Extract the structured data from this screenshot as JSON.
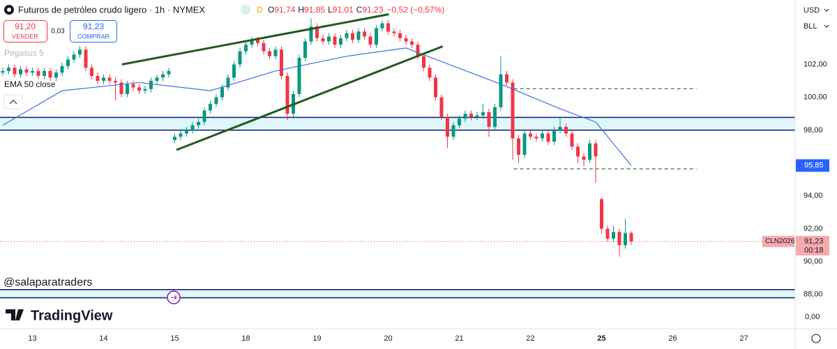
{
  "chart_data": {
    "type": "candlestick",
    "title": "Futuros de petróleo crudo ligero · 1h · NYMEX",
    "interval_badge": "D",
    "ohlc": {
      "open_prefix": "O",
      "open": "91,74",
      "high_prefix": "H",
      "high": "91,85",
      "low_prefix": "L",
      "low": "91,01",
      "close_prefix": "C",
      "close": "91,23",
      "change": "−0,52 (−0,57%)"
    },
    "colors": {
      "up": "#089981",
      "down": "#f23645",
      "ema": "#3c6fe0",
      "trend": "#1e5a1e",
      "zone": "#dff6fb",
      "zone_line": "#0d1b6e"
    },
    "open": [
      101.5,
      101.6,
      101.8,
      101.4,
      101.7,
      101.5,
      101.6,
      101.3,
      101.6,
      101.2,
      101.5,
      101.9,
      102.3,
      102.6,
      102.9,
      101.8,
      101.3,
      101.0,
      101.2,
      101.0,
      100.9,
      100.2,
      100.8,
      100.6,
      100.4,
      100.5,
      101.0,
      101.2,
      101.4,
      97.4,
      97.6,
      97.8,
      98.0,
      98.3,
      98.5,
      99.2,
      99.6,
      100.0,
      100.6,
      101.2,
      102.0,
      102.8,
      103.2,
      103.5,
      103.3,
      102.8,
      102.5,
      102.9,
      101.3,
      99.0,
      100.2,
      102.4,
      103.4,
      104.3,
      103.6,
      103.4,
      103.7,
      103.2,
      103.6,
      103.9,
      103.5,
      104.0,
      103.7,
      103.2,
      104.2,
      104.5,
      104.0,
      103.9,
      103.6,
      103.4,
      103.2,
      102.5,
      101.8,
      101.2,
      100.0,
      98.8,
      97.6,
      98.3,
      98.7,
      99.0,
      98.8,
      98.9,
      99.1,
      98.2,
      99.4,
      101.4,
      100.9,
      97.5,
      96.5,
      97.8,
      97.6,
      97.5,
      97.8,
      97.3,
      98.0,
      98.2,
      97.8,
      97.0,
      96.4,
      96.2,
      97.2,
      93.8,
      92.0,
      91.4,
      91.8,
      91.0,
      91.74
    ],
    "high": [
      101.8,
      102.0,
      102.0,
      101.9,
      101.9,
      101.8,
      101.8,
      101.8,
      101.8,
      101.7,
      102.1,
      102.5,
      102.8,
      103.1,
      103.1,
      102.0,
      101.5,
      101.4,
      101.4,
      101.2,
      101.1,
      101.0,
      101.0,
      100.8,
      100.7,
      101.2,
      101.4,
      101.6,
      101.8,
      97.8,
      98.0,
      98.2,
      98.5,
      98.7,
      99.4,
      99.8,
      100.2,
      100.8,
      101.4,
      102.2,
      103.0,
      103.4,
      103.7,
      103.7,
      103.5,
      103.0,
      103.1,
      103.1,
      101.5,
      100.4,
      102.6,
      103.6,
      104.8,
      104.5,
      103.8,
      103.9,
      103.9,
      103.8,
      104.1,
      104.1,
      104.2,
      104.2,
      103.9,
      104.4,
      104.7,
      104.7,
      104.2,
      104.1,
      103.8,
      103.6,
      103.4,
      102.7,
      102.0,
      101.4,
      100.2,
      99.0,
      98.5,
      98.9,
      99.2,
      99.2,
      99.1,
      99.6,
      99.3,
      99.6,
      102.5,
      101.6,
      101.1,
      97.7,
      98.0,
      98.0,
      97.8,
      98.0,
      98.0,
      98.2,
      98.8,
      98.4,
      98.0,
      97.2,
      96.6,
      97.4,
      97.4,
      93.9,
      92.2,
      92.2,
      92.0,
      92.6,
      91.85
    ],
    "low": [
      101.3,
      101.4,
      101.2,
      101.2,
      101.3,
      101.3,
      101.1,
      101.1,
      101.0,
      101.0,
      101.3,
      101.7,
      102.1,
      102.4,
      101.6,
      101.1,
      100.8,
      100.8,
      100.8,
      99.8,
      100.0,
      100.0,
      100.4,
      100.2,
      100.2,
      100.3,
      100.8,
      101.0,
      101.2,
      97.2,
      97.4,
      97.6,
      97.8,
      98.1,
      98.3,
      99.0,
      99.4,
      99.8,
      100.4,
      101.0,
      101.8,
      102.6,
      103.0,
      103.1,
      102.6,
      102.3,
      102.3,
      101.1,
      98.6,
      98.8,
      100.0,
      102.2,
      103.2,
      103.4,
      103.2,
      103.2,
      103.0,
      103.0,
      103.4,
      103.3,
      103.3,
      103.5,
      103.0,
      103.0,
      104.0,
      103.8,
      103.7,
      103.4,
      103.2,
      103.0,
      102.3,
      101.6,
      101.0,
      99.8,
      98.6,
      96.9,
      97.4,
      98.1,
      98.5,
      98.6,
      98.6,
      98.7,
      97.6,
      98.0,
      99.2,
      100.7,
      96.2,
      96.0,
      96.3,
      97.4,
      97.3,
      97.3,
      97.1,
      97.1,
      97.8,
      97.6,
      96.8,
      96.0,
      95.8,
      96.0,
      94.8,
      91.7,
      91.2,
      91.2,
      90.3,
      90.8,
      91.01
    ],
    "close": [
      101.6,
      101.8,
      101.4,
      101.7,
      101.5,
      101.6,
      101.3,
      101.6,
      101.2,
      101.5,
      101.9,
      102.3,
      102.6,
      102.9,
      101.8,
      101.3,
      101.0,
      101.2,
      101.0,
      100.9,
      100.2,
      100.8,
      100.6,
      100.4,
      100.5,
      101.0,
      101.2,
      101.4,
      101.6,
      97.6,
      97.8,
      98.0,
      98.3,
      98.5,
      99.2,
      99.6,
      100.0,
      100.6,
      101.2,
      102.0,
      102.8,
      103.2,
      103.5,
      103.3,
      102.8,
      102.5,
      102.9,
      101.3,
      99.0,
      100.2,
      102.4,
      103.4,
      104.3,
      103.6,
      103.4,
      103.7,
      103.2,
      103.6,
      103.9,
      103.5,
      104.0,
      103.7,
      103.2,
      104.2,
      104.5,
      104.0,
      103.9,
      103.6,
      103.4,
      103.2,
      102.5,
      101.8,
      101.2,
      100.0,
      98.8,
      97.6,
      98.3,
      98.7,
      99.0,
      98.8,
      98.9,
      99.1,
      98.2,
      99.4,
      101.4,
      100.9,
      97.5,
      96.5,
      97.8,
      97.6,
      97.5,
      97.8,
      97.3,
      98.0,
      98.2,
      97.8,
      97.0,
      96.4,
      96.2,
      97.2,
      96.4,
      92.0,
      91.4,
      91.8,
      91.0,
      91.74,
      91.23
    ],
    "ema": {
      "name": "EMA 50 close",
      "x": [
        0,
        10,
        23,
        35,
        46,
        58,
        68,
        76,
        84,
        94,
        100,
        106
      ],
      "values": [
        98.3,
        100.4,
        100.9,
        100.4,
        101.6,
        102.5,
        103.0,
        101.9,
        100.8,
        99.3,
        98.5,
        95.85
      ],
      "last_label": "95,85"
    },
    "last_price": {
      "value": 91.23,
      "label": "91,23",
      "symbol": "CLN2026",
      "countdown": "00:18"
    },
    "trendlines": [
      {
        "x": [
          20.1,
          65.1
        ],
        "y": [
          102.0,
          105.05
        ]
      },
      {
        "x": [
          29.3,
          74.2
        ],
        "y": [
          96.8,
          103.1
        ]
      }
    ],
    "zones": [
      [
        98.0,
        98.78
      ],
      [
        87.8,
        88.3
      ]
    ],
    "levels": [
      {
        "value": 100.52,
        "x": [
          86.2,
          117
        ]
      },
      {
        "value": 95.64,
        "x": [
          86.2,
          117
        ]
      }
    ],
    "ylim": [
      86,
      105.92
    ],
    "yticks": [
      {
        "value": 102,
        "label": "102,00"
      },
      {
        "value": 100,
        "label": "100,00"
      },
      {
        "value": 98,
        "label": "98,00"
      },
      {
        "value": 94,
        "label": "94,00"
      },
      {
        "value": 92,
        "label": "92,00"
      },
      {
        "value": 90,
        "label": "90,00"
      },
      {
        "value": 88,
        "label": "88,00"
      }
    ],
    "xticks": [
      {
        "value": 5,
        "label": "13"
      },
      {
        "value": 17,
        "label": "14"
      },
      {
        "value": 29,
        "label": "15"
      },
      {
        "value": 41,
        "label": "18"
      },
      {
        "value": 53,
        "label": "19"
      },
      {
        "value": 65,
        "label": "20"
      },
      {
        "value": 77,
        "label": "21"
      },
      {
        "value": 89,
        "label": "22"
      },
      {
        "value": 101,
        "label": "25",
        "bold": true
      },
      {
        "value": 113,
        "label": "26"
      },
      {
        "value": 125,
        "label": "27"
      }
    ]
  },
  "ui": {
    "sell_price": "91,20",
    "sell": "VENDER",
    "spread": "0,03",
    "buy_price": "91,23",
    "buy": "COMPRAR",
    "indicator_1": "Pegasus 5",
    "indicator_2": "EMA 50 close",
    "watermark": "@salaparatraders",
    "logo": "TradingView",
    "currency": "USD",
    "unit": "BLL",
    "volume_tick": "0,00"
  }
}
